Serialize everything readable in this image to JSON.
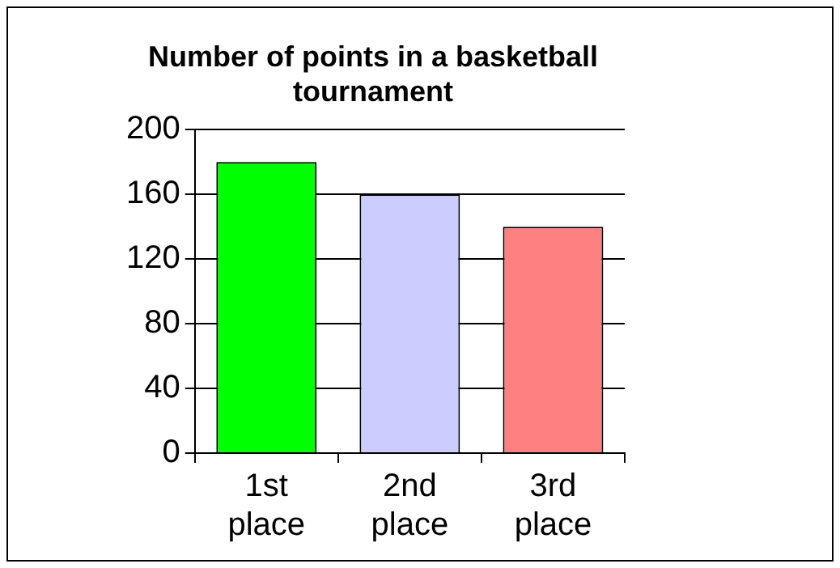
{
  "chart_data": {
    "type": "bar",
    "title": "Number of points in a basketball tournament",
    "categories": [
      "1st place",
      "2nd place",
      "3rd place"
    ],
    "values": [
      180,
      160,
      140
    ],
    "colors": [
      "#00ff00",
      "#ccccff",
      "#ff8080"
    ],
    "ylim": [
      0,
      200
    ],
    "yticks": [
      0,
      40,
      80,
      120,
      160,
      200
    ],
    "grid": "y",
    "legend": false
  }
}
